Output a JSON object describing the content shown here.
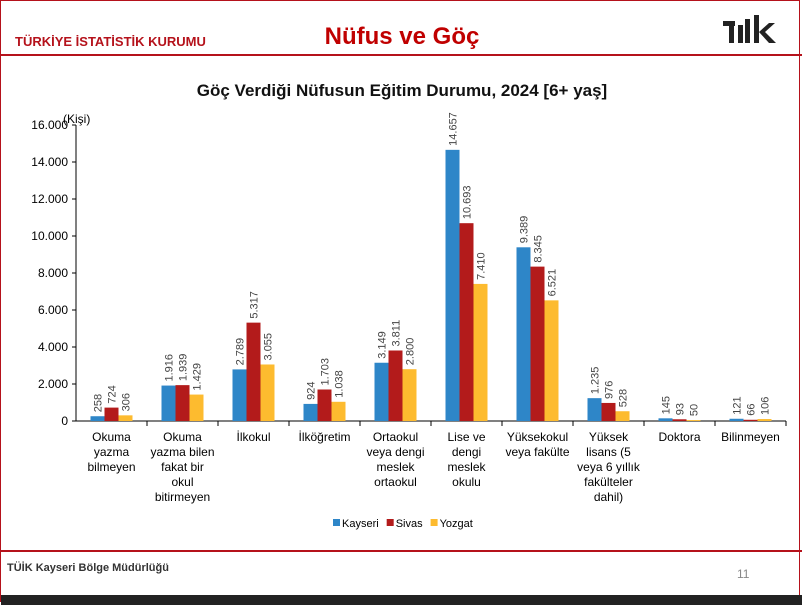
{
  "header": {
    "org": "TÜRKİYE İSTATİSTİK KURUMU",
    "title": "Nüfus ve Göç",
    "logo_text": "TÜİK"
  },
  "footer": {
    "text": "TÜİK Kayseri Bölge Müdürlüğü",
    "page_number": "11"
  },
  "chart_data": {
    "type": "bar",
    "title": "Göç Verdiği Nüfusun Eğitim Durumu, 2024 [6+ yaş]",
    "ylabel": "(Kişi)",
    "ylim": [
      0,
      16000
    ],
    "yticks": [
      "0",
      "2.000",
      "4.000",
      "6.000",
      "8.000",
      "10.000",
      "12.000",
      "14.000",
      "16.000"
    ],
    "grid": false,
    "legend_position": "bottom",
    "categories": [
      [
        "Okuma",
        "yazma",
        "bilmeyen"
      ],
      [
        "Okuma",
        "yazma bilen",
        "fakat bir",
        "okul",
        "bitirmeyen"
      ],
      [
        "İlkokul"
      ],
      [
        "İlköğretim"
      ],
      [
        "Ortaokul",
        "veya dengi",
        "meslek",
        "ortaokul"
      ],
      [
        "Lise ve",
        "dengi",
        "meslek",
        "okulu"
      ],
      [
        "Yüksekokul",
        "veya fakülte"
      ],
      [
        "Yüksek",
        "lisans (5",
        "veya 6 yıllık",
        "fakülteler",
        "dahil)"
      ],
      [
        "Doktora"
      ],
      [
        "Bilinmeyen"
      ]
    ],
    "series": [
      {
        "name": "Kayseri",
        "color": "#2e86c8",
        "values": [
          258,
          1916,
          2789,
          924,
          3149,
          14657,
          9389,
          1235,
          145,
          121
        ],
        "labels": [
          "258",
          "1.916",
          "2.789",
          "924",
          "3.149",
          "14.657",
          "9.389",
          "1.235",
          "145",
          "121"
        ]
      },
      {
        "name": "Sivas",
        "color": "#b31b1b",
        "values": [
          724,
          1939,
          5317,
          1703,
          3811,
          10693,
          8345,
          976,
          93,
          66
        ],
        "labels": [
          "724",
          "1.939",
          "5.317",
          "1.703",
          "3.811",
          "10.693",
          "8.345",
          "976",
          "93",
          "66"
        ]
      },
      {
        "name": "Yozgat",
        "color": "#fdbb2f",
        "values": [
          306,
          1429,
          3055,
          1038,
          2800,
          7410,
          6521,
          528,
          50,
          106
        ],
        "labels": [
          "306",
          "1.429",
          "3.055",
          "1.038",
          "2.800",
          "7.410",
          "6.521",
          "528",
          "50",
          "106"
        ]
      }
    ]
  }
}
